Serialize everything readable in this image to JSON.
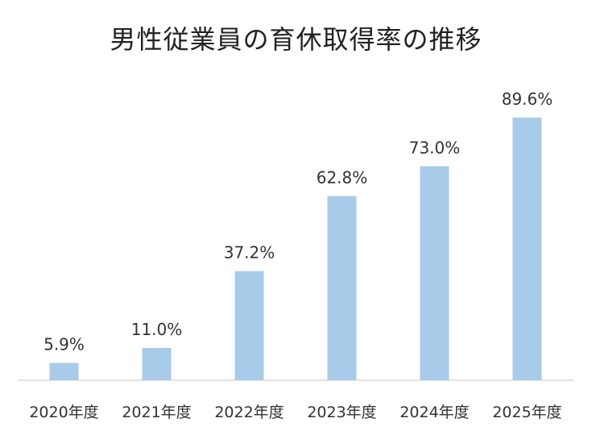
{
  "chart_data": {
    "type": "bar",
    "title": "男性従業員の育休取得率の推移",
    "categories": [
      "2020年度",
      "2021年度",
      "2022年度",
      "2023年度",
      "2024年度",
      "2025年度"
    ],
    "values": [
      5.9,
      11.0,
      37.2,
      62.8,
      73.0,
      89.6
    ],
    "data_labels": [
      "5.9%",
      "11.0%",
      "37.2%",
      "62.8%",
      "73.0%",
      "89.6%"
    ],
    "ylim": [
      0,
      100
    ],
    "xlabel": "",
    "ylabel": "",
    "grid": false,
    "legend": "none",
    "bar_color": "#A9CBEA",
    "axis_color": "#d9d9d9"
  }
}
